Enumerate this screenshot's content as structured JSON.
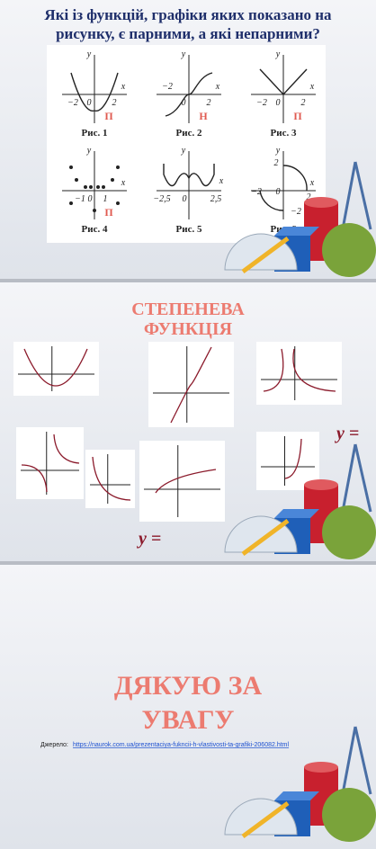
{
  "slides": [
    {
      "title_lines": [
        "Які із функцій, графіки яких показано на",
        "рисунку, є парними, а які непарними?"
      ],
      "figures": [
        {
          "caption": "Рис. 1",
          "mark": "П",
          "labels": [
            "y",
            "x",
            "−2",
            "0",
            "2"
          ]
        },
        {
          "caption": "Рис. 2",
          "mark": "Н",
          "labels": [
            "y",
            "x",
            "−2",
            "0",
            "2"
          ]
        },
        {
          "caption": "Рис. 3",
          "mark": "П",
          "labels": [
            "y",
            "x",
            "−2",
            "0",
            "2"
          ]
        },
        {
          "caption": "Рис. 4",
          "mark": "П",
          "labels": [
            "y",
            "x",
            "−1",
            "0",
            "1"
          ]
        },
        {
          "caption": "Рис. 5",
          "labels": [
            "y",
            "x",
            "−2,5",
            "0",
            "2,5"
          ]
        },
        {
          "caption": "Рис. 6",
          "labels": [
            "y",
            "x",
            "2",
            "−2",
            "0",
            "2",
            "−2"
          ]
        }
      ]
    },
    {
      "title_lines": [
        "СТЕПЕНЕВА",
        "ФУНКЦІЯ"
      ],
      "formulas": [
        "y =",
        "y ="
      ]
    },
    {
      "title_lines": [
        "ДЯКУЮ ЗА",
        "УВАГУ"
      ],
      "source_label": "Джерело:",
      "source_url": "https://naurok.com.ua/prezentaciya-fukncii-h-vlastivosti-ta-grafiki-206082.html"
    }
  ]
}
